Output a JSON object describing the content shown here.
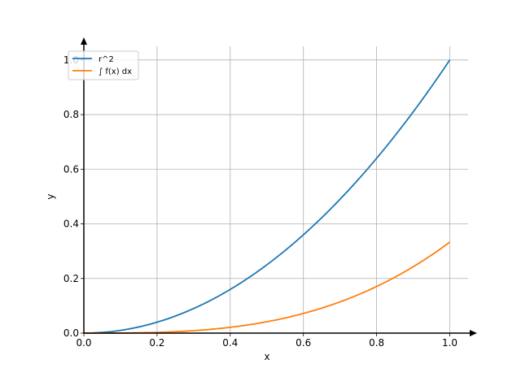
{
  "chart_data": {
    "type": "line",
    "title": "",
    "xlabel": "x",
    "ylabel": "y",
    "xlim": [
      0,
      1.05
    ],
    "ylim": [
      0,
      1.05
    ],
    "grid": true,
    "legend_position": "top-left",
    "x_ticks": [
      0.0,
      0.2,
      0.4,
      0.6,
      0.8,
      1.0
    ],
    "x_tick_labels": [
      "0.0",
      "0.2",
      "0.4",
      "0.6",
      "0.8",
      "1.0"
    ],
    "y_ticks": [
      0.0,
      0.2,
      0.4,
      0.6,
      0.8,
      1.0
    ],
    "y_tick_labels": [
      "0.0",
      "0.2",
      "0.4",
      "0.6",
      "0.8",
      "1.0"
    ],
    "series": [
      {
        "name": "r^2",
        "color": "#1f77b4",
        "x": [
          0.0,
          0.1,
          0.2,
          0.3,
          0.4,
          0.5,
          0.6,
          0.7,
          0.8,
          0.9,
          1.0
        ],
        "y": [
          0.0,
          0.01,
          0.04,
          0.09,
          0.16,
          0.25,
          0.36,
          0.49,
          0.64,
          0.81,
          1.0
        ]
      },
      {
        "name": "∫ f(x) dx",
        "color": "#ff7f0e",
        "x": [
          0.0,
          0.1,
          0.2,
          0.3,
          0.4,
          0.5,
          0.6,
          0.7,
          0.8,
          0.9,
          1.0
        ],
        "y": [
          0.0,
          0.0003,
          0.0027,
          0.009,
          0.0213,
          0.0417,
          0.072,
          0.1143,
          0.1707,
          0.243,
          0.3333
        ]
      }
    ]
  }
}
